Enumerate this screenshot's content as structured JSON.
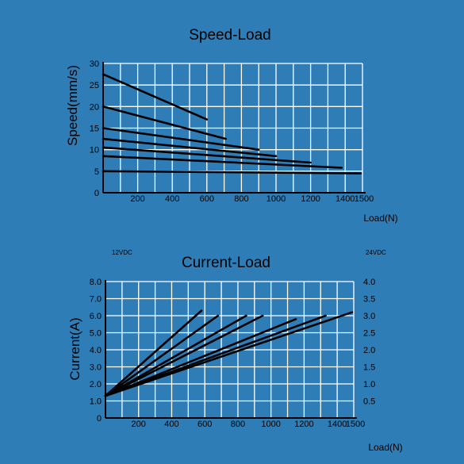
{
  "colors": {
    "background": "#2e7db6",
    "grid": "#ffffff",
    "axis": "#000000",
    "series_line": "#000000",
    "text": "#000000"
  },
  "chart_data": [
    {
      "type": "line",
      "title": "Speed-Load",
      "xlabel": "Load(N)",
      "ylabel": "Speed(mm/s)",
      "xlim": [
        0,
        1500
      ],
      "ylim": [
        0,
        30
      ],
      "xticks": [
        200,
        400,
        600,
        800,
        1000,
        1200,
        1400,
        1500
      ],
      "yticks": [
        0,
        5,
        10,
        15,
        20,
        25,
        30
      ],
      "grid": true,
      "series": [
        {
          "x": [
            0,
            600
          ],
          "y": [
            27.5,
            17
          ]
        },
        {
          "x": [
            0,
            710
          ],
          "y": [
            20,
            12.5
          ]
        },
        {
          "x": [
            0,
            900
          ],
          "y": [
            15,
            10
          ]
        },
        {
          "x": [
            0,
            1000
          ],
          "y": [
            12.5,
            8.5
          ]
        },
        {
          "x": [
            0,
            1200
          ],
          "y": [
            10.5,
            7
          ]
        },
        {
          "x": [
            0,
            1380
          ],
          "y": [
            8.5,
            5.8
          ]
        },
        {
          "x": [
            0,
            1490
          ],
          "y": [
            5,
            4.5
          ]
        }
      ]
    },
    {
      "type": "line",
      "title": "Current-Load",
      "xlabel": "Load(N)",
      "ylabel": "Current(A)",
      "y2label": "",
      "left_axis_note": "12VDC",
      "right_axis_note": "24VDC",
      "xlim": [
        0,
        1500
      ],
      "ylim": [
        0,
        8.0
      ],
      "y2lim": [
        0,
        4.0
      ],
      "xticks": [
        200,
        400,
        600,
        800,
        1000,
        1200,
        1400,
        1500
      ],
      "yticks": [
        "0",
        "1.0",
        "2.0",
        "3.0",
        "4.0",
        "5.0",
        "6.0",
        "7.0",
        "8.0"
      ],
      "y2ticks": [
        "0.5",
        "1.0",
        "1.5",
        "2.0",
        "2.5",
        "3.0",
        "3.5",
        "4.0"
      ],
      "grid": true,
      "series": [
        {
          "x": [
            0,
            580
          ],
          "y": [
            1.3,
            6.3
          ]
        },
        {
          "x": [
            0,
            680
          ],
          "y": [
            1.3,
            6.0
          ]
        },
        {
          "x": [
            0,
            850
          ],
          "y": [
            1.3,
            6.0
          ]
        },
        {
          "x": [
            0,
            950
          ],
          "y": [
            1.3,
            6.0
          ]
        },
        {
          "x": [
            0,
            1150
          ],
          "y": [
            1.3,
            5.8
          ]
        },
        {
          "x": [
            0,
            1330
          ],
          "y": [
            1.3,
            6.0
          ]
        },
        {
          "x": [
            0,
            1490
          ],
          "y": [
            1.3,
            6.2
          ]
        }
      ]
    }
  ]
}
